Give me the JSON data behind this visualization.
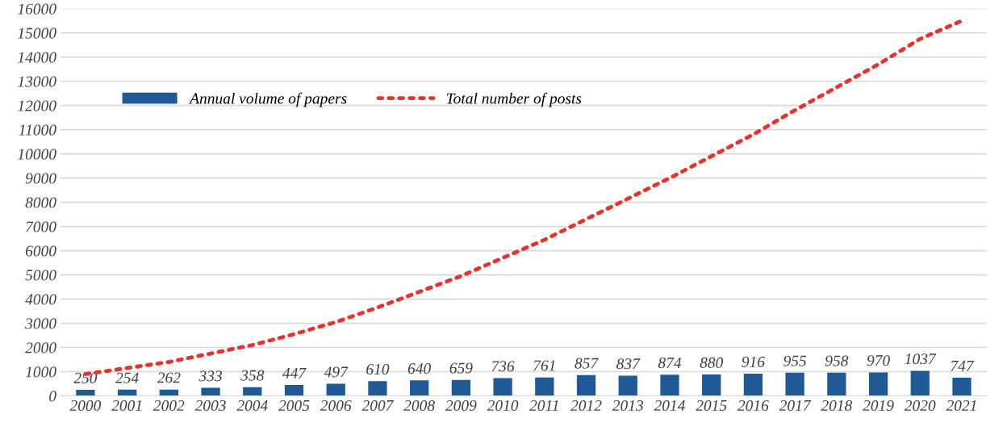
{
  "chart_data": {
    "type": "bar",
    "categories": [
      "2000",
      "2001",
      "2002",
      "2003",
      "2004",
      "2005",
      "2006",
      "2007",
      "2008",
      "2009",
      "2010",
      "2011",
      "2012",
      "2013",
      "2014",
      "2015",
      "2016",
      "2017",
      "2018",
      "2019",
      "2020",
      "2021"
    ],
    "series": [
      {
        "name": "Annual volume of papers",
        "color": "#1f5a96",
        "values": [
          250,
          254,
          262,
          333,
          358,
          447,
          497,
          610,
          640,
          659,
          736,
          761,
          857,
          837,
          874,
          880,
          916,
          955,
          958,
          970,
          1037,
          747
        ],
        "data_labels": true
      },
      {
        "name": "Total number of posts",
        "type": "line",
        "color": "#e8322e",
        "line_style": "dotted",
        "values": [
          900,
          1150,
          1400,
          1750,
          2100,
          2550,
          3050,
          3650,
          4300,
          4950,
          5700,
          6450,
          7300,
          8150,
          9000,
          9900,
          10800,
          11800,
          12750,
          13700,
          14750,
          15500
        ]
      }
    ],
    "ylim": [
      0,
      16000
    ],
    "yticks": [
      0,
      1000,
      2000,
      3000,
      4000,
      5000,
      6000,
      7000,
      8000,
      9000,
      10000,
      11000,
      12000,
      13000,
      14000,
      15000,
      16000
    ],
    "grid": "y",
    "legend": "top left"
  }
}
